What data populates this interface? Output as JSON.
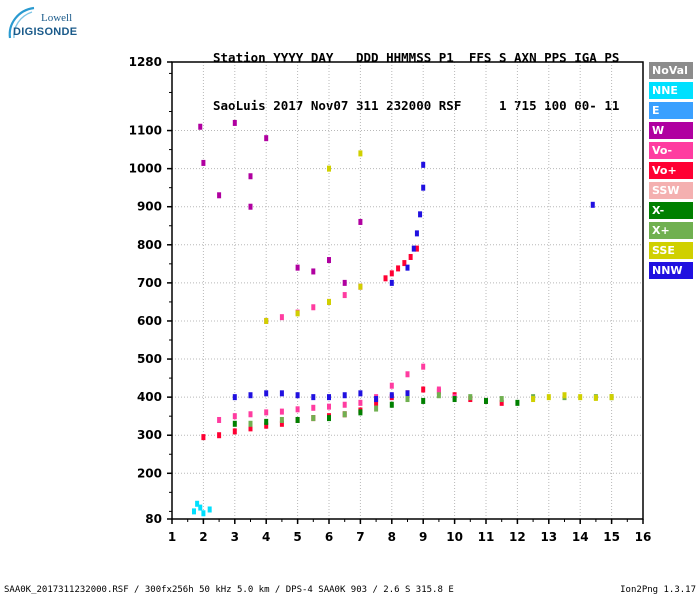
{
  "logo": {
    "line1": "Lowell",
    "line2": "DIGISONDE"
  },
  "header": {
    "row1": "Station YYYY DAY   DDD HHMMSS P1  FFS S AXN PPS IGA PS",
    "row2": "SaoLuis 2017 Nov07 311 232000 RSF     1 715 100 00- 11"
  },
  "legend": [
    {
      "label": "NoVal",
      "color": "#8c8c8c"
    },
    {
      "label": "NNE",
      "color": "#00e0ff"
    },
    {
      "label": "E",
      "color": "#3aa0ff"
    },
    {
      "label": "W",
      "color": "#b000a0"
    },
    {
      "label": "Vo-",
      "color": "#ff3ca0"
    },
    {
      "label": "Vo+",
      "color": "#ff0033"
    },
    {
      "label": "SSW",
      "color": "#f4b0b0"
    },
    {
      "label": "X-",
      "color": "#008000"
    },
    {
      "label": "X+",
      "color": "#70b050"
    },
    {
      "label": "SSE",
      "color": "#d0d000"
    },
    {
      "label": "NNW",
      "color": "#2010e0"
    }
  ],
  "footer": {
    "left": "SAA0K_2017311232000.RSF / 300fx256h 50 kHz 5.0 km / DPS-4 SAA0K 903 / 2.6 S 315.8 E",
    "right": "Ion2Png 1.3.17"
  },
  "chart_data": {
    "type": "scatter",
    "title": "",
    "xlabel": "",
    "ylabel": "",
    "xlim": [
      1,
      16
    ],
    "ylim": [
      80,
      1280
    ],
    "x_ticks": [
      1,
      2,
      3,
      4,
      5,
      6,
      7,
      8,
      9,
      10,
      11,
      12,
      13,
      14,
      15,
      16
    ],
    "y_ticks": [
      80,
      200,
      300,
      400,
      500,
      600,
      700,
      800,
      900,
      1000,
      1100,
      1280
    ],
    "grid": true,
    "series": [
      {
        "name": "Vo+",
        "color": "#ff0033",
        "x": [
          2.0,
          2.5,
          3.0,
          3.5,
          4.0,
          4.5,
          5.0,
          5.5,
          6.0,
          6.5,
          7.0,
          7.5,
          8.0,
          8.5,
          9.0,
          9.5,
          10.0,
          10.5,
          11.0,
          11.5,
          7.8,
          8.0,
          8.2,
          8.4,
          8.6,
          8.8
        ],
        "y": [
          295,
          300,
          310,
          318,
          325,
          330,
          340,
          345,
          350,
          355,
          365,
          385,
          400,
          410,
          420,
          415,
          405,
          395,
          390,
          385,
          712,
          725,
          738,
          752,
          768,
          790
        ]
      },
      {
        "name": "Vo-",
        "color": "#ff3ca0",
        "x": [
          2.5,
          3.0,
          3.5,
          4.0,
          4.5,
          5.0,
          5.5,
          6.0,
          6.5,
          7.0,
          7.5,
          8.0,
          8.5,
          9.0,
          9.5,
          10.0,
          4.0,
          4.5,
          5.0,
          5.5,
          6.0,
          6.5,
          7.0
        ],
        "y": [
          340,
          350,
          355,
          360,
          362,
          368,
          372,
          375,
          380,
          385,
          400,
          430,
          460,
          480,
          420,
          400,
          600,
          610,
          622,
          636,
          650,
          668,
          690
        ]
      },
      {
        "name": "NNW",
        "color": "#2010e0",
        "x": [
          3.0,
          3.5,
          4.0,
          4.5,
          5.0,
          5.5,
          6.0,
          6.5,
          7.0,
          7.5,
          8.0,
          8.5,
          8.7,
          8.8,
          8.9,
          9.0,
          9.0,
          14.4,
          8.0,
          8.5
        ],
        "y": [
          400,
          405,
          410,
          410,
          405,
          400,
          400,
          405,
          410,
          395,
          700,
          740,
          790,
          830,
          880,
          950,
          1010,
          905,
          405,
          410
        ]
      },
      {
        "name": "X+",
        "color": "#70b050",
        "x": [
          3.5,
          4.5,
          5.5,
          6.5,
          7.5,
          8.5,
          9.5,
          10.5,
          11.5,
          12.5,
          13.5,
          14.5,
          15.0
        ],
        "y": [
          330,
          340,
          345,
          355,
          370,
          395,
          405,
          400,
          395,
          400,
          400,
          400,
          400
        ]
      },
      {
        "name": "X-",
        "color": "#008000",
        "x": [
          3.0,
          4.0,
          5.0,
          6.0,
          7.0,
          8.0,
          9.0,
          10.0,
          11.0,
          12.0
        ],
        "y": [
          330,
          335,
          340,
          345,
          360,
          380,
          390,
          395,
          390,
          385
        ]
      },
      {
        "name": "SSE",
        "color": "#d0d000",
        "x": [
          4.0,
          5.0,
          6.0,
          7.0,
          12.5,
          13.0,
          13.5,
          14.0,
          14.5,
          15.0,
          6.0,
          7.0
        ],
        "y": [
          600,
          620,
          650,
          690,
          395,
          400,
          405,
          400,
          398,
          400,
          1000,
          1040
        ]
      },
      {
        "name": "W",
        "color": "#b000a0",
        "x": [
          1.9,
          2.0,
          3.0,
          3.5,
          4.0,
          5.0,
          5.5,
          6.0,
          6.5,
          7.0,
          2.5,
          3.5
        ],
        "y": [
          1110,
          1015,
          1120,
          980,
          1080,
          740,
          730,
          760,
          700,
          860,
          930,
          900
        ]
      },
      {
        "name": "NNE",
        "color": "#00e0ff",
        "x": [
          1.7,
          1.9,
          2.0,
          2.2,
          1.8
        ],
        "y": [
          100,
          110,
          95,
          105,
          120
        ]
      }
    ]
  }
}
